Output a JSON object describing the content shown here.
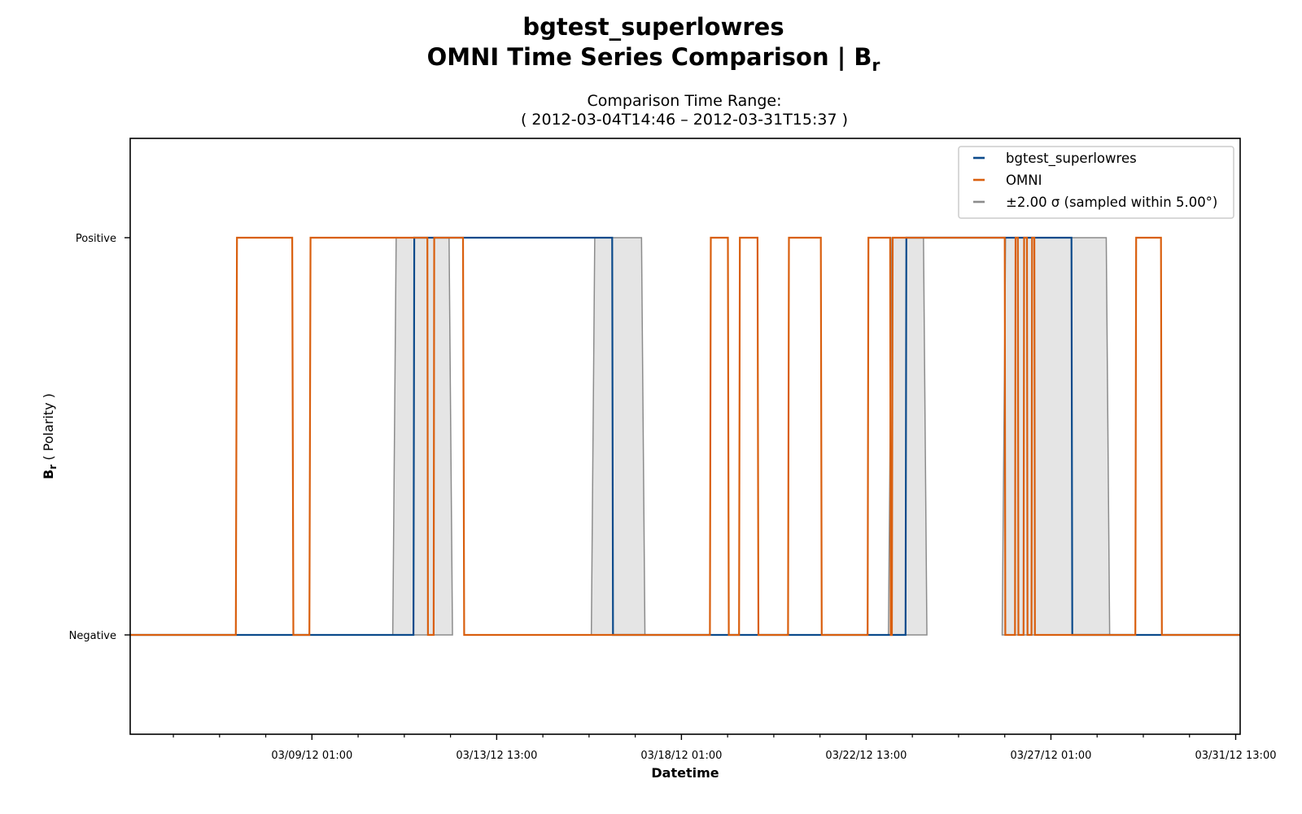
{
  "chart_data": {
    "type": "line",
    "title": "bgtest_superlowres",
    "title_line2_prefix": "OMNI Time Series Comparison | B",
    "title_line2_sub": "r",
    "subtitle_line1": "Comparison Time Range:",
    "subtitle_line2": "( 2012-03-04T14:46 – 2012-03-31T15:37 )",
    "xlabel": "Datetime",
    "ylabel_main": "B",
    "ylabel_sub": "r",
    "ylabel_rest": " ( Polarity )",
    "xlim": [
      "2012-03-04T14:46",
      "2012-03-31T15:37"
    ],
    "ylim": [
      -0.25,
      1.25
    ],
    "x_ticks": [
      {
        "x": "2012-03-09T01:00",
        "label": "03/09/12 01:00"
      },
      {
        "x": "2012-03-13T13:00",
        "label": "03/13/12 13:00"
      },
      {
        "x": "2012-03-18T01:00",
        "label": "03/18/12 01:00"
      },
      {
        "x": "2012-03-22T13:00",
        "label": "03/22/12 13:00"
      },
      {
        "x": "2012-03-27T01:00",
        "label": "03/27/12 01:00"
      },
      {
        "x": "2012-03-31T13:00",
        "label": "03/31/12 13:00"
      }
    ],
    "y_ticks": [
      {
        "y": 1,
        "label": "Positive"
      },
      {
        "y": 0,
        "label": "Negative"
      }
    ],
    "legend": {
      "position": "top-right",
      "entries": [
        {
          "label": "bgtest_superlowres",
          "color": "#0b4a8b"
        },
        {
          "label": "OMNI",
          "color": "#d95f0e"
        },
        {
          "label": "±2.00 σ (sampled within 5.00°)",
          "color": "#8c8c8c"
        }
      ]
    },
    "band": {
      "name": "±2.00 σ (sampled within 5.00°)",
      "fill": "#e5e5e5",
      "edge": "#8c8c8c",
      "intervals": [
        [
          "2012-03-11T00:15",
          "2012-03-12T11:10"
        ],
        [
          "2012-03-15T20:20",
          "2012-03-17T03:40"
        ],
        [
          "2012-03-23T02:00",
          "2012-03-24T00:30"
        ],
        [
          "2012-03-25T20:30",
          "2012-03-28T11:20"
        ]
      ]
    },
    "series": [
      {
        "name": "bgtest_superlowres",
        "color": "#0b4a8b",
        "points": [
          [
            "2012-03-04T14:46",
            0
          ],
          [
            "2012-03-11T12:20",
            0
          ],
          [
            "2012-03-11T12:50",
            1
          ],
          [
            "2012-03-16T08:30",
            1
          ],
          [
            "2012-03-16T09:00",
            0
          ],
          [
            "2012-03-23T12:00",
            0
          ],
          [
            "2012-03-23T12:30",
            1
          ],
          [
            "2012-03-27T13:00",
            1
          ],
          [
            "2012-03-27T13:30",
            0
          ],
          [
            "2012-03-31T15:37",
            0
          ]
        ]
      },
      {
        "name": "OMNI",
        "color": "#d95f0e",
        "points": [
          [
            "2012-03-04T14:46",
            0
          ],
          [
            "2012-03-07T04:30",
            0
          ],
          [
            "2012-03-07T05:10",
            1
          ],
          [
            "2012-03-08T13:30",
            1
          ],
          [
            "2012-03-08T14:10",
            0
          ],
          [
            "2012-03-08T23:30",
            0
          ],
          [
            "2012-03-09T00:10",
            1
          ],
          [
            "2012-03-11T20:30",
            1
          ],
          [
            "2012-03-11T20:50",
            0
          ],
          [
            "2012-03-12T00:10",
            0
          ],
          [
            "2012-03-12T00:30",
            1
          ],
          [
            "2012-03-12T17:20",
            1
          ],
          [
            "2012-03-12T18:00",
            0
          ],
          [
            "2012-03-18T17:40",
            0
          ],
          [
            "2012-03-18T18:10",
            1
          ],
          [
            "2012-03-19T04:10",
            1
          ],
          [
            "2012-03-19T04:40",
            0
          ],
          [
            "2012-03-19T10:40",
            0
          ],
          [
            "2012-03-19T11:10",
            1
          ],
          [
            "2012-03-19T21:30",
            1
          ],
          [
            "2012-03-19T22:00",
            0
          ],
          [
            "2012-03-20T15:20",
            0
          ],
          [
            "2012-03-20T15:50",
            1
          ],
          [
            "2012-03-21T10:30",
            1
          ],
          [
            "2012-03-21T11:00",
            0
          ],
          [
            "2012-03-22T13:50",
            0
          ],
          [
            "2012-03-22T14:20",
            1
          ],
          [
            "2012-03-23T03:00",
            1
          ],
          [
            "2012-03-23T03:20",
            0
          ],
          [
            "2012-03-23T04:00",
            0
          ],
          [
            "2012-03-23T04:30",
            1
          ],
          [
            "2012-03-25T22:00",
            1
          ],
          [
            "2012-03-25T22:20",
            0
          ],
          [
            "2012-03-26T04:00",
            0
          ],
          [
            "2012-03-26T04:20",
            1
          ],
          [
            "2012-03-26T05:40",
            1
          ],
          [
            "2012-03-26T06:00",
            0
          ],
          [
            "2012-03-26T09:00",
            0
          ],
          [
            "2012-03-26T09:20",
            1
          ],
          [
            "2012-03-26T11:00",
            1
          ],
          [
            "2012-03-26T11:20",
            0
          ],
          [
            "2012-03-26T13:40",
            0
          ],
          [
            "2012-03-26T14:00",
            1
          ],
          [
            "2012-03-26T15:20",
            1
          ],
          [
            "2012-03-26T15:40",
            0
          ],
          [
            "2012-03-29T02:20",
            0
          ],
          [
            "2012-03-29T02:50",
            1
          ],
          [
            "2012-03-29T17:20",
            1
          ],
          [
            "2012-03-29T17:50",
            0
          ],
          [
            "2012-03-31T15:37",
            0
          ]
        ]
      }
    ]
  }
}
